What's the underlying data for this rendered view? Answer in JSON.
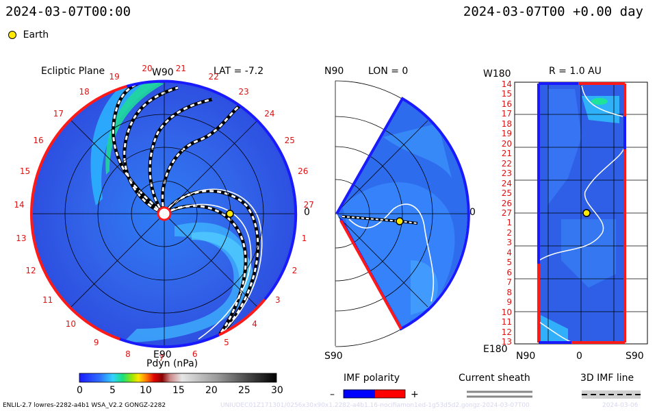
{
  "header": {
    "datetime_left": "2024-03-07T00:00",
    "datetime_right": "2024-03-07T00 +0.00 day",
    "earth_legend": "Earth"
  },
  "panels": {
    "ecliptic": {
      "title": "Ecliptic Plane",
      "lat_label": "LAT = -7.2",
      "w90": "W90",
      "e90": "E90",
      "zero": "0",
      "carrington_days": [
        "19",
        "20",
        "21",
        "22",
        "23",
        "24",
        "25",
        "26",
        "27",
        "1",
        "2",
        "3",
        "4",
        "5",
        "6",
        "7",
        "8",
        "9",
        "10",
        "11",
        "12",
        "13",
        "14",
        "15",
        "16",
        "17",
        "18"
      ]
    },
    "meridional": {
      "n90": "N90",
      "s90": "S90",
      "lon_label": "LON = 0",
      "zero": "0"
    },
    "radial": {
      "title": "R = 1.0 AU",
      "w180": "W180",
      "e180": "E180",
      "bottom_labels": [
        "N90",
        "0",
        "S90"
      ],
      "rows": [
        "14",
        "15",
        "16",
        "17",
        "18",
        "19",
        "20",
        "21",
        "22",
        "23",
        "24",
        "25",
        "26",
        "27",
        "1",
        "2",
        "3",
        "4",
        "5",
        "6",
        "7",
        "8",
        "9",
        "10",
        "11",
        "12",
        "13"
      ]
    }
  },
  "colorbar": {
    "label": "Pdyn (nPa)",
    "ticks": [
      "0",
      "5",
      "10",
      "15",
      "20",
      "25",
      "30"
    ]
  },
  "legend": {
    "imf_polarity": "IMF polarity",
    "minus": "–",
    "plus": "+",
    "current_sheath": "Current sheath",
    "imf_line": "3D IMF line",
    "neg_color": "#0000ff",
    "pos_color": "#ff0000"
  },
  "footer": {
    "model_info": "ENLIL-2.7 lowres-2282-a4b1 WSA_V2.2 GONGZ-2282",
    "run_id": "UNIUDEC01Z171301/0256x30x90x1.2282-a4b1.16-nocifiamon1ed-1g53d5d2.gongz-2024-03-07T00",
    "date_tag": "2024-03-06"
  },
  "chart_data": [
    {
      "type": "heatmap",
      "name": "Ecliptic Plane",
      "quantity": "Pdyn (nPa)",
      "earth_position": {
        "angle_deg": 0,
        "r_au": 1.0
      },
      "lat": -7.2
    },
    {
      "type": "heatmap",
      "name": "Meridional",
      "lon": 0,
      "earth_position": {
        "lat_deg": 0,
        "r_au": 1.0
      }
    },
    {
      "type": "heatmap",
      "name": "R = 1.0 AU",
      "r_au": 1.0,
      "earth_position": {
        "lat_deg": 0,
        "carrington_day": "27"
      }
    },
    {
      "type": "colorbar",
      "label": "Pdyn (nPa)",
      "range": [
        0,
        30
      ],
      "ticks": [
        0,
        5,
        10,
        15,
        20,
        25,
        30
      ]
    }
  ]
}
